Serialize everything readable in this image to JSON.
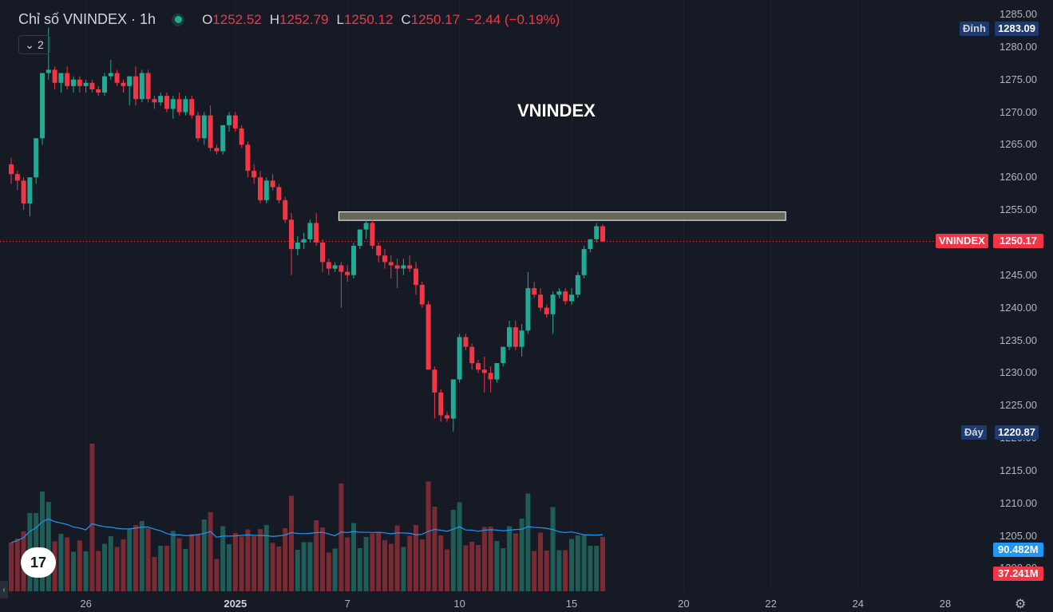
{
  "header": {
    "title": "Chỉ số VNINDEX · 1h",
    "ohlc": [
      {
        "k": "O",
        "v": "1252.52"
      },
      {
        "k": "H",
        "v": "1252.79"
      },
      {
        "k": "L",
        "v": "1250.12"
      },
      {
        "k": "C",
        "v": "1250.17"
      }
    ],
    "change": "−2.44 (−0.19%)",
    "collapse_count": "2"
  },
  "labels": {
    "peak_tag": "Đỉnh",
    "peak_value": "1283.09",
    "trough_tag": "Đáy",
    "trough_value": "1220.87",
    "symbol_tag": "VNINDEX",
    "last_value": "1250.17",
    "vol_ma": "90.482M",
    "vol_last": "37.241M",
    "annotation": "VNINDEX",
    "logo": "17"
  },
  "icons": {
    "collapse": "chevron-down-icon",
    "settings": "gear-icon",
    "scroll_left": "chevron-left-icon",
    "status": "market-open-dot-icon",
    "brand": "tradingview-logo-icon"
  },
  "colors": {
    "background": "#161a25",
    "up": "#22ab94",
    "down": "#f23645",
    "up_volume": "#1e5c55",
    "down_volume": "#7a2a33",
    "volume_ma": "#2196f3",
    "zone_fill": "#c9c89a",
    "peak_tag_bg": "#1e3a6e"
  },
  "chart_data": {
    "type": "candlestick",
    "title": "Chỉ số VNINDEX · 1h",
    "y_ticks": [
      "1285.00",
      "1280.00",
      "1275.00",
      "1270.00",
      "1265.00",
      "1260.00",
      "1255.00",
      "1250.00",
      "1245.00",
      "1240.00",
      "1235.00",
      "1230.00",
      "1225.00",
      "1220.00",
      "1215.00",
      "1210.00",
      "1205.00",
      "1200.00"
    ],
    "ylim": [
      1198.0,
      1287.0
    ],
    "x_ticks": [
      {
        "label": "26",
        "index": 12,
        "bold": false
      },
      {
        "label": "2025",
        "index": 36,
        "bold": true
      },
      {
        "label": "7",
        "index": 54,
        "bold": false
      },
      {
        "label": "10",
        "index": 72,
        "bold": false
      },
      {
        "label": "15",
        "index": 90,
        "bold": false
      },
      {
        "label": "20",
        "index": 108,
        "bold": false
      },
      {
        "label": "22",
        "index": 122,
        "bold": false
      },
      {
        "label": "24",
        "index": 136,
        "bold": false
      },
      {
        "label": "28",
        "index": 150,
        "bold": false
      }
    ],
    "resistance_zone": {
      "from_index": 53,
      "to_index": 124,
      "low": 1253.4,
      "high": 1254.7
    },
    "last_price": 1250.17,
    "ohlc": [
      [
        1262.0,
        1263.0,
        1259.0,
        1260.5
      ],
      [
        1260.5,
        1261.0,
        1258.0,
        1259.5
      ],
      [
        1259.5,
        1260.0,
        1255.0,
        1256.0
      ],
      [
        1256.0,
        1260.0,
        1254.0,
        1260.0
      ],
      [
        1260.0,
        1266.0,
        1259.0,
        1266.0
      ],
      [
        1266.0,
        1276.0,
        1265.0,
        1276.0
      ],
      [
        1276.0,
        1283.0,
        1275.0,
        1276.5
      ],
      [
        1276.5,
        1277.0,
        1273.5,
        1274.5
      ],
      [
        1274.5,
        1276.0,
        1273.0,
        1276.0
      ],
      [
        1276.0,
        1277.0,
        1273.5,
        1274.0
      ],
      [
        1274.0,
        1275.5,
        1273.0,
        1275.0
      ],
      [
        1275.0,
        1275.5,
        1273.0,
        1274.0
      ],
      [
        1274.0,
        1275.0,
        1273.0,
        1274.5
      ],
      [
        1274.5,
        1275.0,
        1273.0,
        1273.5
      ],
      [
        1273.5,
        1274.0,
        1272.5,
        1273.0
      ],
      [
        1273.0,
        1276.0,
        1272.5,
        1275.5
      ],
      [
        1275.5,
        1278.0,
        1275.0,
        1276.0
      ],
      [
        1276.0,
        1276.5,
        1274.0,
        1274.5
      ],
      [
        1274.5,
        1275.0,
        1273.0,
        1274.0
      ],
      [
        1274.0,
        1275.5,
        1271.0,
        1275.5
      ],
      [
        1275.5,
        1277.0,
        1271.0,
        1272.0
      ],
      [
        1272.0,
        1276.5,
        1271.5,
        1276.0
      ],
      [
        1276.0,
        1276.5,
        1271.5,
        1272.0
      ],
      [
        1272.0,
        1272.5,
        1270.5,
        1271.5
      ],
      [
        1271.5,
        1273.0,
        1271.0,
        1272.5
      ],
      [
        1272.5,
        1273.0,
        1270.0,
        1270.5
      ],
      [
        1270.5,
        1272.5,
        1269.0,
        1272.0
      ],
      [
        1272.0,
        1273.0,
        1269.5,
        1270.0
      ],
      [
        1270.0,
        1272.5,
        1269.5,
        1272.0
      ],
      [
        1272.0,
        1272.5,
        1269.0,
        1269.5
      ],
      [
        1269.5,
        1270.0,
        1265.5,
        1266.0
      ],
      [
        1266.0,
        1270.0,
        1265.0,
        1269.5
      ],
      [
        1269.5,
        1271.0,
        1264.0,
        1264.5
      ],
      [
        1264.5,
        1265.0,
        1263.5,
        1264.0
      ],
      [
        1264.0,
        1268.0,
        1263.5,
        1268.0
      ],
      [
        1268.0,
        1270.0,
        1267.0,
        1269.5
      ],
      [
        1269.5,
        1270.0,
        1267.0,
        1267.5
      ],
      [
        1267.5,
        1268.0,
        1264.5,
        1265.0
      ],
      [
        1265.0,
        1265.5,
        1260.0,
        1261.0
      ],
      [
        1261.0,
        1262.0,
        1259.0,
        1260.0
      ],
      [
        1260.0,
        1261.0,
        1256.0,
        1256.5
      ],
      [
        1256.5,
        1260.0,
        1256.0,
        1259.5
      ],
      [
        1259.5,
        1260.5,
        1258.0,
        1258.5
      ],
      [
        1258.5,
        1259.0,
        1256.0,
        1256.5
      ],
      [
        1256.5,
        1257.0,
        1253.0,
        1253.5
      ],
      [
        1253.5,
        1254.5,
        1245.0,
        1249.0
      ],
      [
        1249.0,
        1251.0,
        1248.0,
        1250.0
      ],
      [
        1250.0,
        1251.5,
        1249.0,
        1250.5
      ],
      [
        1250.5,
        1253.5,
        1250.0,
        1253.0
      ],
      [
        1253.0,
        1254.5,
        1249.5,
        1250.0
      ],
      [
        1250.0,
        1250.5,
        1245.5,
        1247.0
      ],
      [
        1247.0,
        1247.5,
        1245.0,
        1246.0
      ],
      [
        1246.0,
        1247.0,
        1245.5,
        1246.5
      ],
      [
        1246.5,
        1247.0,
        1240.0,
        1245.5
      ],
      [
        1245.5,
        1246.5,
        1244.0,
        1245.0
      ],
      [
        1245.0,
        1250.0,
        1244.5,
        1249.5
      ],
      [
        1249.5,
        1252.0,
        1249.0,
        1252.0
      ],
      [
        1252.0,
        1253.5,
        1250.5,
        1253.0
      ],
      [
        1253.0,
        1253.5,
        1249.0,
        1249.5
      ],
      [
        1249.5,
        1250.0,
        1247.0,
        1248.0
      ],
      [
        1248.0,
        1249.0,
        1246.0,
        1247.0
      ],
      [
        1247.0,
        1248.0,
        1244.5,
        1246.5
      ],
      [
        1246.5,
        1247.5,
        1243.0,
        1246.0
      ],
      [
        1246.0,
        1247.5,
        1245.0,
        1246.5
      ],
      [
        1246.5,
        1248.0,
        1245.5,
        1246.0
      ],
      [
        1246.0,
        1247.0,
        1242.0,
        1243.5
      ],
      [
        1243.5,
        1244.0,
        1240.0,
        1240.5
      ],
      [
        1240.5,
        1241.0,
        1230.5,
        1230.5
      ],
      [
        1230.5,
        1231.0,
        1223.0,
        1227.0
      ],
      [
        1227.0,
        1227.5,
        1222.5,
        1223.5
      ],
      [
        1223.5,
        1224.0,
        1222.5,
        1223.0
      ],
      [
        1223.0,
        1229.0,
        1221.0,
        1229.0
      ],
      [
        1229.0,
        1236.0,
        1228.5,
        1235.5
      ],
      [
        1235.5,
        1236.0,
        1233.5,
        1234.0
      ],
      [
        1234.0,
        1234.5,
        1230.5,
        1231.5
      ],
      [
        1231.5,
        1232.0,
        1230.0,
        1230.5
      ],
      [
        1230.5,
        1232.5,
        1227.0,
        1230.0
      ],
      [
        1230.0,
        1231.0,
        1227.0,
        1229.0
      ],
      [
        1229.0,
        1231.5,
        1228.5,
        1231.5
      ],
      [
        1231.5,
        1234.0,
        1231.0,
        1234.0
      ],
      [
        1234.0,
        1238.0,
        1233.5,
        1237.0
      ],
      [
        1237.0,
        1238.0,
        1233.5,
        1234.0
      ],
      [
        1234.0,
        1237.5,
        1232.5,
        1236.5
      ],
      [
        1236.5,
        1245.5,
        1236.0,
        1243.0
      ],
      [
        1243.0,
        1244.0,
        1241.5,
        1242.0
      ],
      [
        1242.0,
        1243.0,
        1239.5,
        1240.0
      ],
      [
        1240.0,
        1240.5,
        1238.5,
        1239.0
      ],
      [
        1239.0,
        1242.5,
        1236.0,
        1242.0
      ],
      [
        1242.0,
        1243.0,
        1241.5,
        1242.5
      ],
      [
        1242.5,
        1243.0,
        1240.5,
        1241.0
      ],
      [
        1241.0,
        1243.0,
        1240.5,
        1242.0
      ],
      [
        1242.0,
        1245.5,
        1241.5,
        1245.0
      ],
      [
        1245.0,
        1249.5,
        1244.5,
        1249.0
      ],
      [
        1249.0,
        1250.5,
        1248.5,
        1250.5
      ],
      [
        1250.5,
        1253.0,
        1250.0,
        1252.5
      ],
      [
        1252.5,
        1252.79,
        1250.12,
        1250.17
      ]
    ],
    "volume": [
      "90.482M",
      "37.241M"
    ]
  }
}
